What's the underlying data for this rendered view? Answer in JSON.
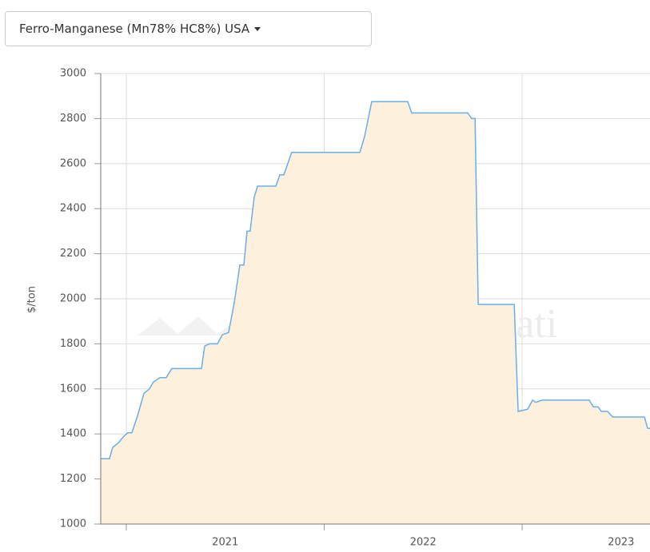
{
  "dropdown": {
    "label": "Ferro-Manganese (Mn78% HC8%) USA"
  },
  "chart_data": {
    "type": "area",
    "y_axis_label": "$/ton",
    "watermark": "FT Mercati",
    "x": [
      2020.871,
      2020.915,
      2020.931,
      2020.96,
      2020.988,
      2021.008,
      2021.028,
      2021.057,
      2021.089,
      2021.117,
      2021.137,
      2021.17,
      2021.202,
      2021.23,
      2021.38,
      2021.396,
      2021.42,
      2021.461,
      2021.485,
      2021.517,
      2021.545,
      2021.574,
      2021.594,
      2021.61,
      2021.626,
      2021.646,
      2021.663,
      2021.756,
      2021.776,
      2021.796,
      2021.836,
      2022.18,
      2022.204,
      2022.24,
      2022.422,
      2022.442,
      2022.725,
      2022.745,
      2022.762,
      2022.778,
      2022.96,
      2022.98,
      2023.028,
      2023.053,
      2023.069,
      2023.101,
      2023.339,
      2023.36,
      2023.384,
      2023.4,
      2023.432,
      2023.457,
      2023.618,
      2023.634,
      2023.646
    ],
    "values": [
      1290,
      1290,
      1340,
      1360,
      1390,
      1405,
      1405,
      1480,
      1580,
      1600,
      1630,
      1650,
      1650,
      1690,
      1690,
      1790,
      1800,
      1800,
      1840,
      1850,
      1980,
      2150,
      2150,
      2300,
      2300,
      2450,
      2500,
      2500,
      2550,
      2550,
      2650,
      2650,
      2720,
      2875,
      2875,
      2825,
      2825,
      2800,
      2800,
      1975,
      1975,
      1500,
      1510,
      1550,
      1540,
      1550,
      1550,
      1520,
      1520,
      1500,
      1500,
      1475,
      1475,
      1425,
      1425
    ],
    "line_color": "#6aaee8",
    "fill_color": "#fdf0dc",
    "xlim": [
      2020.871,
      2023.646
    ],
    "xticks": [
      2021,
      2022,
      2023
    ],
    "ylim": [
      1000,
      3000
    ],
    "yticks": [
      1000,
      1200,
      1400,
      1600,
      1800,
      2000,
      2200,
      2400,
      2600,
      2800,
      3000
    ],
    "grid": true
  }
}
